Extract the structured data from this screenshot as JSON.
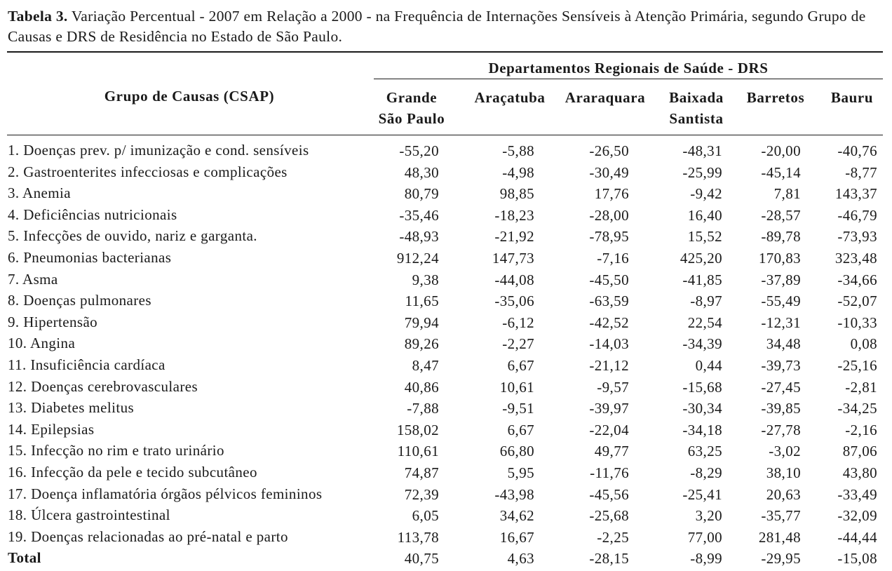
{
  "caption": {
    "label": "Tabela 3.",
    "text": " Variação Percentual - 2007 em Relação a 2000 - na Frequência de Internações Sensíveis à Atenção Primária, segundo Grupo de Causas e DRS de Residência no Estado de São Paulo."
  },
  "header": {
    "group_label": "Grupo de Causas (CSAP)",
    "drs_label": "Departamentos Regionais de Saúde - DRS",
    "columns": [
      [
        "Grande",
        "São Paulo"
      ],
      [
        "Araçatuba",
        ""
      ],
      [
        "Araraquara",
        ""
      ],
      [
        "Baixada",
        "Santista"
      ],
      [
        "Barretos",
        ""
      ],
      [
        "Bauru",
        ""
      ]
    ]
  },
  "rows": [
    {
      "cause": "1. Doenças prev. p/ imunização e cond. sensíveis",
      "values": [
        "-55,20",
        "-5,88",
        "-26,50",
        "-48,31",
        "-20,00",
        "-40,76"
      ]
    },
    {
      "cause": "2. Gastroenterites infecciosas e complicações",
      "values": [
        "48,30",
        "-4,98",
        "-30,49",
        "-25,99",
        "-45,14",
        "-8,77"
      ]
    },
    {
      "cause": "3. Anemia",
      "values": [
        "80,79",
        "98,85",
        "17,76",
        "-9,42",
        "7,81",
        "143,37"
      ]
    },
    {
      "cause": "4. Deficiências nutricionais",
      "values": [
        "-35,46",
        "-18,23",
        "-28,00",
        "16,40",
        "-28,57",
        "-46,79"
      ]
    },
    {
      "cause": "5. Infecções de ouvido, nariz e garganta.",
      "values": [
        "-48,93",
        "-21,92",
        "-78,95",
        "15,52",
        "-89,78",
        "-73,93"
      ]
    },
    {
      "cause": "6. Pneumonias bacterianas",
      "values": [
        "912,24",
        "147,73",
        "-7,16",
        "425,20",
        "170,83",
        "323,48"
      ]
    },
    {
      "cause": "7. Asma",
      "values": [
        "9,38",
        "-44,08",
        "-45,50",
        "-41,85",
        "-37,89",
        "-34,66"
      ]
    },
    {
      "cause": "8. Doenças pulmonares",
      "values": [
        "11,65",
        "-35,06",
        "-63,59",
        "-8,97",
        "-55,49",
        "-52,07"
      ]
    },
    {
      "cause": "9. Hipertensão",
      "values": [
        "79,94",
        "-6,12",
        "-42,52",
        "22,54",
        "-12,31",
        "-10,33"
      ]
    },
    {
      "cause": "10. Angina",
      "values": [
        "89,26",
        "-2,27",
        "-14,03",
        "-34,39",
        "34,48",
        "0,08"
      ]
    },
    {
      "cause": "11. Insuficiência cardíaca",
      "values": [
        "8,47",
        "6,67",
        "-21,12",
        "0,44",
        "-39,73",
        "-25,16"
      ]
    },
    {
      "cause": "12. Doenças cerebrovasculares",
      "values": [
        "40,86",
        "10,61",
        "-9,57",
        "-15,68",
        "-27,45",
        "-2,81"
      ]
    },
    {
      "cause": "13. Diabetes melitus",
      "values": [
        "-7,88",
        "-9,51",
        "-39,97",
        "-30,34",
        "-39,85",
        "-34,25"
      ]
    },
    {
      "cause": "14. Epilepsias",
      "values": [
        "158,02",
        "6,67",
        "-22,04",
        "-34,18",
        "-27,78",
        "-2,16"
      ]
    },
    {
      "cause": "15. Infecção no rim e trato urinário",
      "values": [
        "110,61",
        "66,80",
        "49,77",
        "63,25",
        "-3,02",
        "87,06"
      ]
    },
    {
      "cause": "16. Infecção da pele e tecido subcutâneo",
      "values": [
        "74,87",
        "5,95",
        "-11,76",
        "-8,29",
        "38,10",
        "43,80"
      ]
    },
    {
      "cause": "17. Doença inflamatória órgãos pélvicos femininos",
      "values": [
        "72,39",
        "-43,98",
        "-45,56",
        "-25,41",
        "20,63",
        "-33,49"
      ]
    },
    {
      "cause": "18. Úlcera gastrointestinal",
      "values": [
        "6,05",
        "34,62",
        "-25,68",
        "3,20",
        "-35,77",
        "-32,09"
      ]
    },
    {
      "cause": "19. Doenças relacionadas ao pré-natal e parto",
      "values": [
        "113,78",
        "16,67",
        "-2,25",
        "77,00",
        "281,48",
        "-44,44"
      ]
    }
  ],
  "total": {
    "label": "Total",
    "values": [
      "40,75",
      "4,63",
      "-28,15",
      "-8,99",
      "-29,95",
      "-15,08"
    ]
  }
}
